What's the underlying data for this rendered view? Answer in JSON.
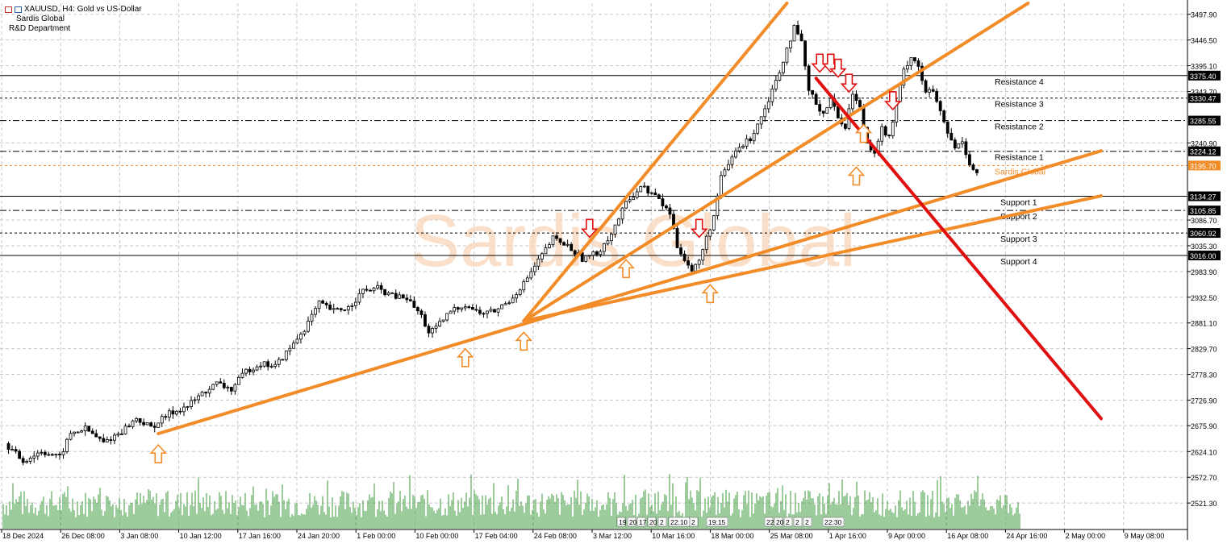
{
  "header": {
    "symbol_line": "XAUUSD, H4:  Gold vs US-Dollar",
    "line2": "Sardis Global",
    "line3": "R&D Department",
    "icons": [
      "chart-menu-icon",
      "one-click-trading-icon"
    ]
  },
  "watermark": "Sardis Global",
  "colors": {
    "candle": "#000000",
    "trend_up": "#f28c28",
    "trend_down": "#e01010",
    "arrow_up": "#f28c28",
    "arrow_down": "#e01010",
    "volume": "#3a9a3a",
    "grid": "#c8c8c8",
    "price_label_bg": "#000000",
    "highlight_label_bg": "#f28c28"
  },
  "chart_data": {
    "type": "candlestick",
    "symbol": "XAUUSD",
    "timeframe": "H4",
    "title": "XAUUSD, H4:  Gold vs US-Dollar",
    "ylim": [
      2470,
      3520
    ],
    "y_ticks": [
      "3497.90",
      "3446.50",
      "3395.10",
      "3343.70",
      "3240.90",
      "3086.70",
      "3035.30",
      "2983.90",
      "2932.50",
      "2881.10",
      "2829.70",
      "2778.30",
      "2726.90",
      "2675.90",
      "2624.10",
      "2572.70",
      "2521.30"
    ],
    "x_tick_labels": [
      "18 Dec 2024",
      "26 Dec 08:00",
      "3 Jan 08:00",
      "10 Jan 12:00",
      "17 Jan 16:00",
      "24 Jan 20:00",
      "1 Feb 00:00",
      "10 Feb 00:00",
      "17 Feb 04:00",
      "24 Feb 08:00",
      "3 Mar 12:00",
      "10 Mar 16:00",
      "18 Mar 00:00",
      "25 Mar 08:00",
      "1 Apr 16:00",
      "9 Apr 00:00",
      "16 Apr 08:00",
      "24 Apr 16:00",
      "2 May 00:00",
      "9 May 08:00"
    ],
    "price_path": [
      [
        0,
        2640
      ],
      [
        5,
        2605
      ],
      [
        10,
        2625
      ],
      [
        15,
        2612
      ],
      [
        18,
        2660
      ],
      [
        22,
        2670
      ],
      [
        27,
        2642
      ],
      [
        32,
        2665
      ],
      [
        36,
        2690
      ],
      [
        40,
        2672
      ],
      [
        45,
        2700
      ],
      [
        50,
        2715
      ],
      [
        54,
        2740
      ],
      [
        58,
        2760
      ],
      [
        62,
        2748
      ],
      [
        66,
        2785
      ],
      [
        70,
        2800
      ],
      [
        74,
        2795
      ],
      [
        78,
        2830
      ],
      [
        82,
        2870
      ],
      [
        86,
        2920
      ],
      [
        90,
        2905
      ],
      [
        94,
        2912
      ],
      [
        98,
        2945
      ],
      [
        102,
        2950
      ],
      [
        106,
        2935
      ],
      [
        110,
        2930
      ],
      [
        114,
        2895
      ],
      [
        116,
        2862
      ],
      [
        118,
        2870
      ],
      [
        122,
        2905
      ],
      [
        126,
        2918
      ],
      [
        130,
        2900
      ],
      [
        134,
        2905
      ],
      [
        138,
        2925
      ],
      [
        142,
        2960
      ],
      [
        146,
        3005
      ],
      [
        150,
        3050
      ],
      [
        154,
        3035
      ],
      [
        158,
        3010
      ],
      [
        162,
        3020
      ],
      [
        166,
        3060
      ],
      [
        170,
        3120
      ],
      [
        174,
        3155
      ],
      [
        178,
        3135
      ],
      [
        182,
        3100
      ],
      [
        184,
        3035
      ],
      [
        186,
        3010
      ],
      [
        188,
        2985
      ],
      [
        190,
        3005
      ],
      [
        192,
        3050
      ],
      [
        194,
        3095
      ],
      [
        196,
        3170
      ],
      [
        200,
        3225
      ],
      [
        204,
        3250
      ],
      [
        208,
        3310
      ],
      [
        212,
        3385
      ],
      [
        214,
        3430
      ],
      [
        216,
        3470
      ],
      [
        218,
        3440
      ],
      [
        220,
        3345
      ],
      [
        222,
        3320
      ],
      [
        224,
        3300
      ],
      [
        226,
        3330
      ],
      [
        228,
        3290
      ],
      [
        230,
        3275
      ],
      [
        232,
        3340
      ],
      [
        234,
        3310
      ],
      [
        236,
        3240
      ],
      [
        238,
        3225
      ],
      [
        240,
        3270
      ],
      [
        242,
        3250
      ],
      [
        244,
        3320
      ],
      [
        246,
        3385
      ],
      [
        248,
        3415
      ],
      [
        250,
        3395
      ],
      [
        252,
        3340
      ],
      [
        254,
        3345
      ],
      [
        256,
        3300
      ],
      [
        258,
        3260
      ],
      [
        260,
        3230
      ],
      [
        262,
        3245
      ],
      [
        264,
        3200
      ],
      [
        266,
        3180
      ]
    ],
    "horizontal_levels": [
      {
        "label": "Resistance 4",
        "price_label": "3375.40",
        "value": 3375.4,
        "style": "solid"
      },
      {
        "label": "Resistance 3",
        "price_label": "3330.47",
        "value": 3330.47,
        "style": "dashed"
      },
      {
        "label": "Resistance 2",
        "price_label": "3285.55",
        "value": 3285.55,
        "style": "dashdot"
      },
      {
        "label": "Resistance 1",
        "price_label": "3224.12",
        "value": 3224.12,
        "style": "dashdot"
      },
      {
        "label": "Sardis Global",
        "price_label": "3195.70",
        "value": 3195.7,
        "style": "dashed",
        "highlight": true
      },
      {
        "label": "Support 1",
        "price_label": "3134.27",
        "value": 3134.27,
        "style": "solid"
      },
      {
        "label": "Support 2",
        "price_label": "3105.85",
        "value": 3105.85,
        "style": "dashdot"
      },
      {
        "label": "Support 3",
        "price_label": "3060.92",
        "value": 3060.92,
        "style": "dashed"
      },
      {
        "label": "Support 4",
        "price_label": "3016.00",
        "value": 3016.0,
        "style": "solid"
      }
    ],
    "trendlines": [
      {
        "color": "orange",
        "from": [
          42,
          2660
        ],
        "to": [
          300,
          3225
        ]
      },
      {
        "color": "orange",
        "from": [
          142,
          2885
        ],
        "to": [
          214,
          3520
        ]
      },
      {
        "color": "orange",
        "from": [
          142,
          2885
        ],
        "to": [
          280,
          3520
        ]
      },
      {
        "color": "orange",
        "from": [
          142,
          2885
        ],
        "to": [
          300,
          3135
        ]
      },
      {
        "color": "red",
        "from": [
          222,
          3370
        ],
        "to": [
          300,
          2690
        ]
      }
    ],
    "signal_arrows": [
      {
        "dir": "up",
        "at": [
          42,
          2660
        ]
      },
      {
        "dir": "up",
        "at": [
          126,
          2852
        ]
      },
      {
        "dir": "up",
        "at": [
          142,
          2885
        ]
      },
      {
        "dir": "up",
        "at": [
          170,
          3030
        ]
      },
      {
        "dir": "up",
        "at": [
          193,
          2980
        ]
      },
      {
        "dir": "up",
        "at": [
          233,
          3215
        ]
      },
      {
        "dir": "up",
        "at": [
          235,
          3300
        ]
      },
      {
        "dir": "down",
        "at": [
          160,
          3030
        ]
      },
      {
        "dir": "down",
        "at": [
          190,
          3030
        ]
      },
      {
        "dir": "down",
        "at": [
          223,
          3360
        ]
      },
      {
        "dir": "down",
        "at": [
          226,
          3360
        ]
      },
      {
        "dir": "down",
        "at": [
          228,
          3350
        ]
      },
      {
        "dir": "down",
        "at": [
          231,
          3320
        ]
      },
      {
        "dir": "down",
        "at": [
          243,
          3285
        ]
      }
    ],
    "bottom_markers": [
      "19",
      "20",
      "17",
      "20",
      "2",
      "22:10",
      "2",
      "19:15",
      "22",
      "20",
      "2",
      "2",
      "2",
      "22:30"
    ]
  }
}
